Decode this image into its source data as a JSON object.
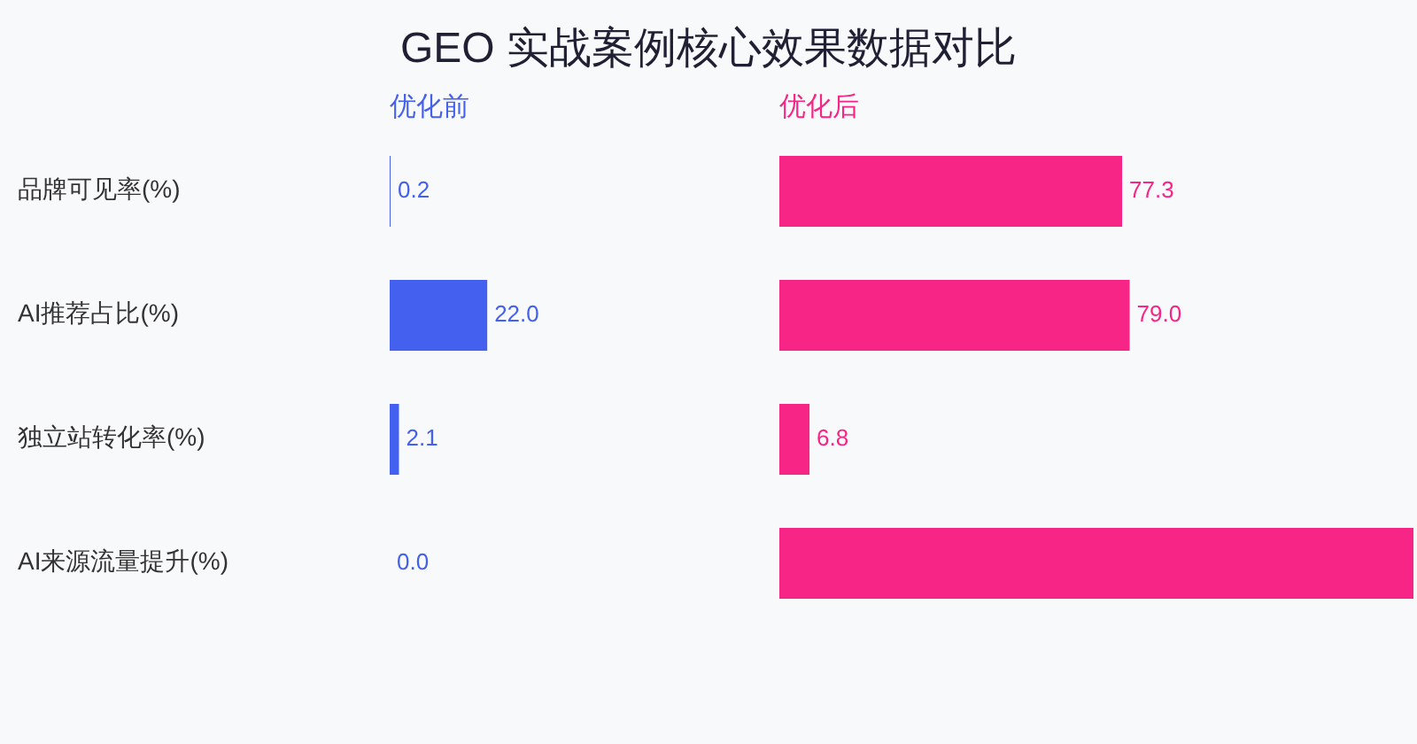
{
  "chart_data": [
    {
      "type": "bar",
      "orientation": "horizontal",
      "title": "GEO 实战案例核心效果数据对比",
      "categories": [
        "品牌可见率(%)",
        "AI推荐占比(%)",
        "独立站转化率(%)",
        "AI来源流量提升(%)"
      ],
      "series": [
        {
          "name": "优化前",
          "color": "#4361ee",
          "values": [
            0.2,
            22.0,
            2.1,
            0.0
          ],
          "value_labels": [
            "0.2",
            "22.0",
            "2.1",
            "0.0"
          ]
        }
      ],
      "legend": "top left",
      "tick_labels": "y"
    },
    {
      "type": "bar",
      "orientation": "horizontal",
      "categories": [
        null,
        null,
        null,
        null
      ],
      "series": [
        {
          "name": "优化后",
          "color": "#f72585",
          "values": [
            77.3,
            79.0,
            6.8,
            143
          ],
          "value_labels": [
            "77.3",
            "79.0",
            "6.8",
            null
          ]
        }
      ],
      "legend": "top left"
    }
  ]
}
